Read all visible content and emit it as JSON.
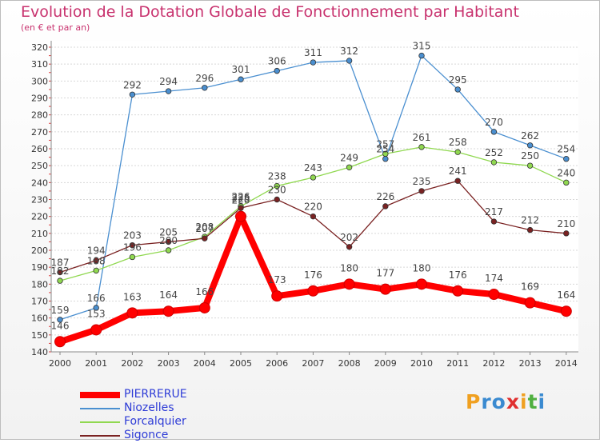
{
  "title": "Evolution de la Dotation Globale de Fonctionnement par Habitant",
  "subtitle": "(en € et par an)",
  "logo_text": "Proxiti",
  "chart_data": {
    "type": "line",
    "x": [
      "2000",
      "2001",
      "2002",
      "2003",
      "2004",
      "2005",
      "2006",
      "2007",
      "2008",
      "2009",
      "2010",
      "2011",
      "2012",
      "2013",
      "2014"
    ],
    "ylim": [
      140,
      320
    ],
    "yticks": [
      140,
      150,
      160,
      170,
      180,
      190,
      200,
      210,
      220,
      230,
      240,
      250,
      260,
      270,
      280,
      290,
      300,
      310,
      320
    ],
    "grid": "horizontal",
    "legend_position": "bottom-left",
    "series": [
      {
        "name": "PIERRERUE",
        "color": "#ff0000",
        "values": [
          146,
          153,
          163,
          164,
          166,
          220,
          173,
          176,
          180,
          177,
          180,
          176,
          174,
          169,
          164
        ],
        "labels": [
          "146",
          "153",
          "163",
          "164",
          "166",
          "220",
          "173",
          "176",
          "180",
          "177",
          "180",
          "176",
          "174",
          "169",
          "164"
        ]
      },
      {
        "name": "Niozelles",
        "color": "#4a8fd0",
        "values": [
          159,
          166,
          292,
          294,
          296,
          301,
          306,
          311,
          312,
          254,
          315,
          295,
          270,
          262,
          254
        ],
        "labels": [
          "159",
          "166",
          "292",
          "294",
          "296",
          "301",
          "306",
          "311",
          "312",
          "254",
          "315",
          "295",
          "270",
          "262",
          "254"
        ]
      },
      {
        "name": "Forcalquier",
        "color": "#90d850",
        "values": [
          182,
          188,
          196,
          200,
          208,
          226,
          238,
          243,
          249,
          257,
          261,
          258,
          252,
          250,
          240
        ],
        "labels": [
          "182",
          "188",
          "196",
          "200",
          "208",
          "226",
          "238",
          "243",
          "249",
          "257",
          "261",
          "258",
          "252",
          "250",
          "240"
        ]
      },
      {
        "name": "Sigonce",
        "color": "#7a2222",
        "values": [
          187,
          194,
          203,
          205,
          207,
          225,
          230,
          220,
          202,
          226,
          235,
          241,
          217,
          212,
          210
        ],
        "labels": [
          "187",
          "194",
          "203",
          "205",
          "207",
          "225",
          "230",
          "220",
          "202",
          "226",
          "235",
          "241",
          "217",
          "212",
          "210"
        ]
      }
    ]
  }
}
